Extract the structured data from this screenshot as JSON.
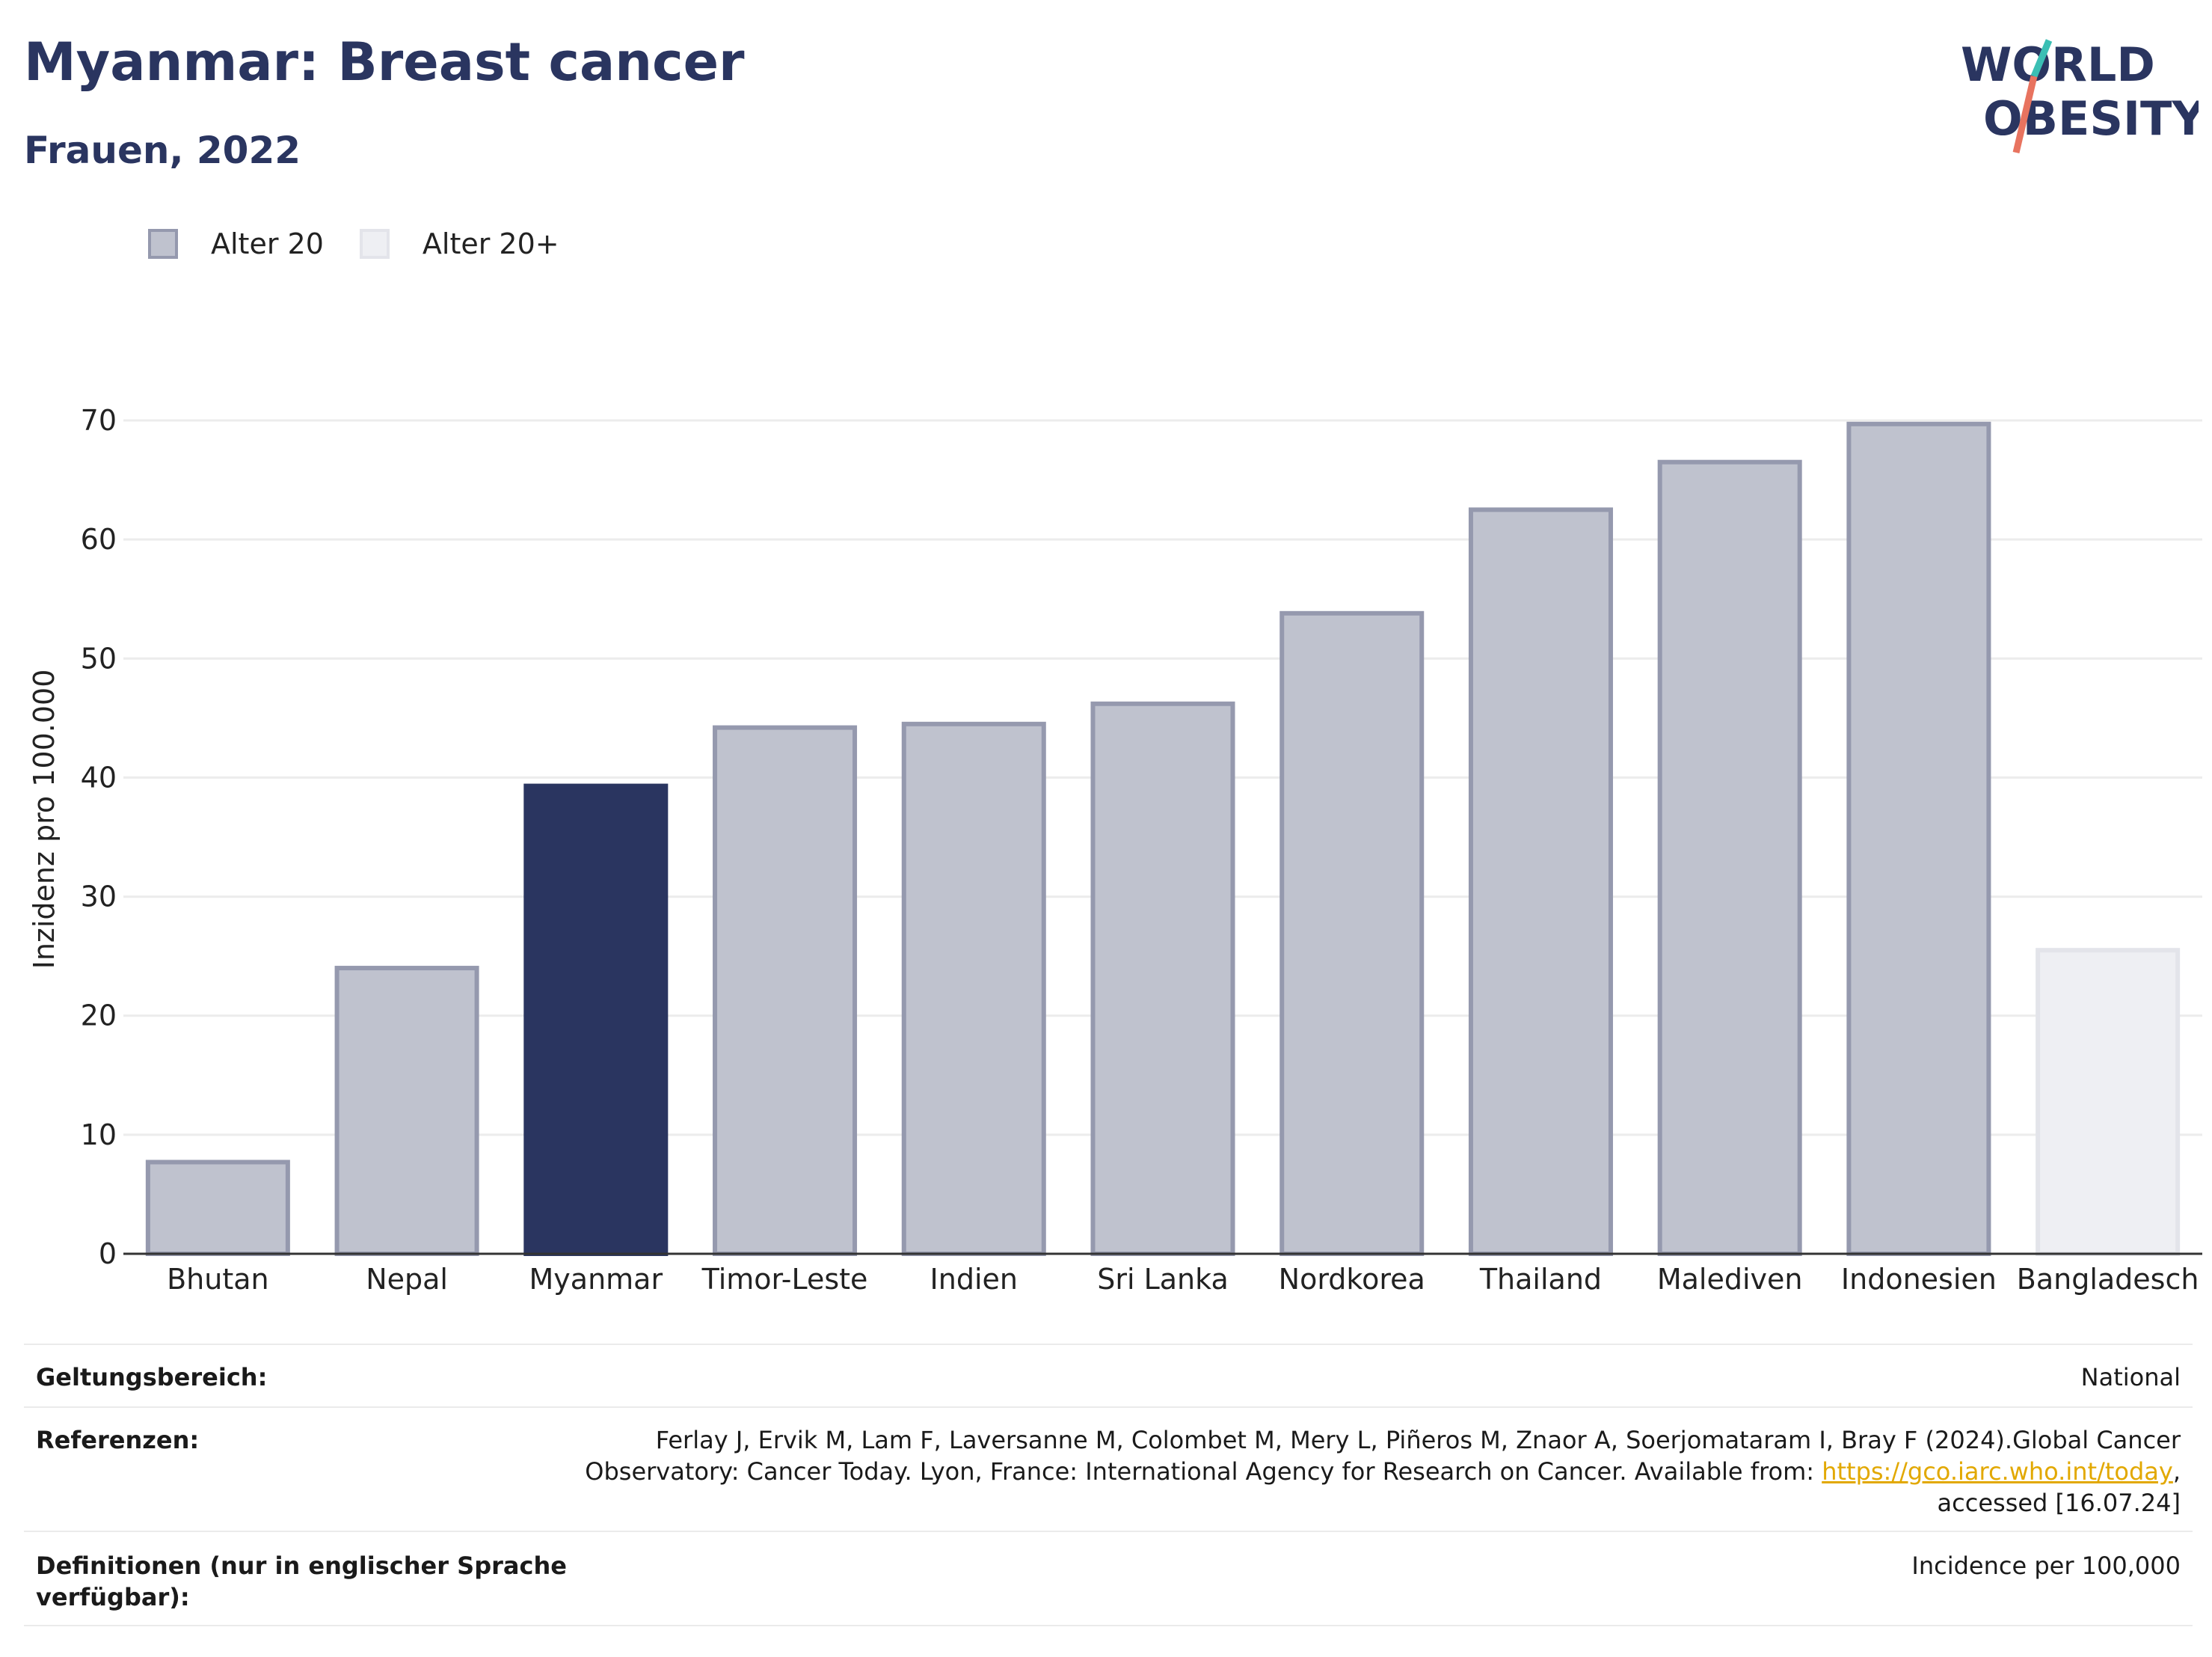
{
  "header": {
    "title": "Myanmar: Breast cancer",
    "subtitle": "Frauen, 2022",
    "logo_line1": "WORLD",
    "logo_line2": "OBESITY"
  },
  "legend": {
    "items": [
      {
        "label": "Alter 20",
        "color": "#bfc2ce"
      },
      {
        "label": "Alter 20+",
        "color": "#eeeff3"
      }
    ]
  },
  "chart_data": {
    "type": "bar",
    "title": "Myanmar: Breast cancer",
    "subtitle": "Frauen, 2022",
    "xlabel": "",
    "ylabel": "Inzidenz pro 100.000",
    "ylim": [
      0,
      70
    ],
    "yticks": [
      0,
      10,
      20,
      30,
      40,
      50,
      60,
      70
    ],
    "grid": true,
    "legend_position": "top-left",
    "categories": [
      "Bhutan",
      "Nepal",
      "Myanmar",
      "Timor-Leste",
      "Indien",
      "Sri Lanka",
      "Nordkorea",
      "Thailand",
      "Malediven",
      "Indonesien",
      "Bangladesch"
    ],
    "values": [
      7.7,
      24.0,
      39.3,
      44.2,
      44.5,
      46.2,
      53.8,
      62.5,
      66.5,
      69.7,
      25.5
    ],
    "groups": [
      "Alter 20",
      "Alter 20",
      "Alter 20",
      "Alter 20",
      "Alter 20",
      "Alter 20",
      "Alter 20",
      "Alter 20",
      "Alter 20",
      "Alter 20",
      "Alter 20+"
    ],
    "highlight": "Myanmar",
    "colors": {
      "highlight": "#2a3560",
      "alter20": "#bfc2ce",
      "alter20_border": "#9599ae",
      "alter20plus": "#eeeff3",
      "alter20plus_border": "#e3e4ea"
    }
  },
  "info": {
    "scope_label": "Geltungsbereich:",
    "scope_value": "National",
    "references_label": "Referenzen:",
    "references_text": "Ferlay J, Ervik M, Lam F, Laversanne M, Colombet M, Mery L, Piñeros M, Znaor A, Soerjomataram I, Bray F (2024).Global Cancer Observatory: Cancer Today. Lyon, France: International Agency for Research on Cancer. Available from:",
    "references_link": "https://gco.iarc.who.int/today",
    "references_suffix": ", accessed [16.07.24]",
    "definitions_label": "Definitionen (nur in englischer Sprache verfügbar):",
    "definitions_value": "Incidence per 100,000"
  }
}
